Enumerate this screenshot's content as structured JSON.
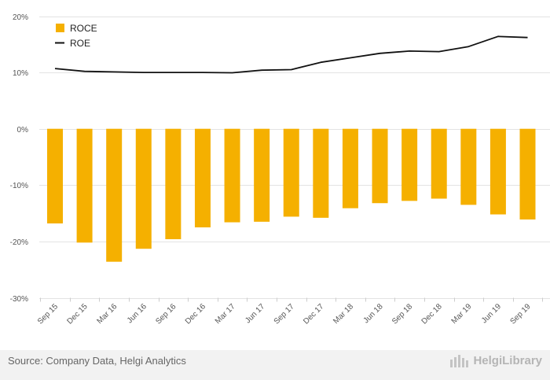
{
  "chart_data": {
    "type": "bar",
    "categories": [
      "Sep 15",
      "Dec 15",
      "Mar 16",
      "Jun 16",
      "Sep 16",
      "Dec 16",
      "Mar 17",
      "Jun 17",
      "Sep 17",
      "Dec 17",
      "Mar 18",
      "Jun 18",
      "Sep 18",
      "Dec 18",
      "Mar 19",
      "Jun 19",
      "Sep 19"
    ],
    "series": [
      {
        "name": "ROCE",
        "type": "bar",
        "color": "#f5b000",
        "values": [
          -16.8,
          -20.2,
          -23.6,
          -21.3,
          -19.6,
          -17.5,
          -16.6,
          -16.5,
          -15.6,
          -15.8,
          -14.1,
          -13.2,
          -12.8,
          -12.4,
          -13.5,
          -15.2,
          -16.1
        ]
      },
      {
        "name": "ROE",
        "type": "line",
        "color": "#111111",
        "values": [
          10.7,
          10.2,
          10.1,
          10.0,
          10.0,
          10.0,
          9.95,
          10.4,
          10.5,
          11.8,
          12.6,
          13.4,
          13.8,
          13.7,
          14.6,
          16.4,
          16.2
        ]
      }
    ],
    "ylim": [
      -30,
      20
    ],
    "yticks": [
      "20%",
      "10%",
      "0%",
      "-10%",
      "-20%",
      "-30%"
    ],
    "ytick_values": [
      20,
      10,
      0,
      -10,
      -20,
      -30
    ],
    "grid": true,
    "legend": "top-left"
  },
  "footer": {
    "source": "Source: Company Data, Helgi Analytics",
    "brand": "HelgiLibrary"
  }
}
